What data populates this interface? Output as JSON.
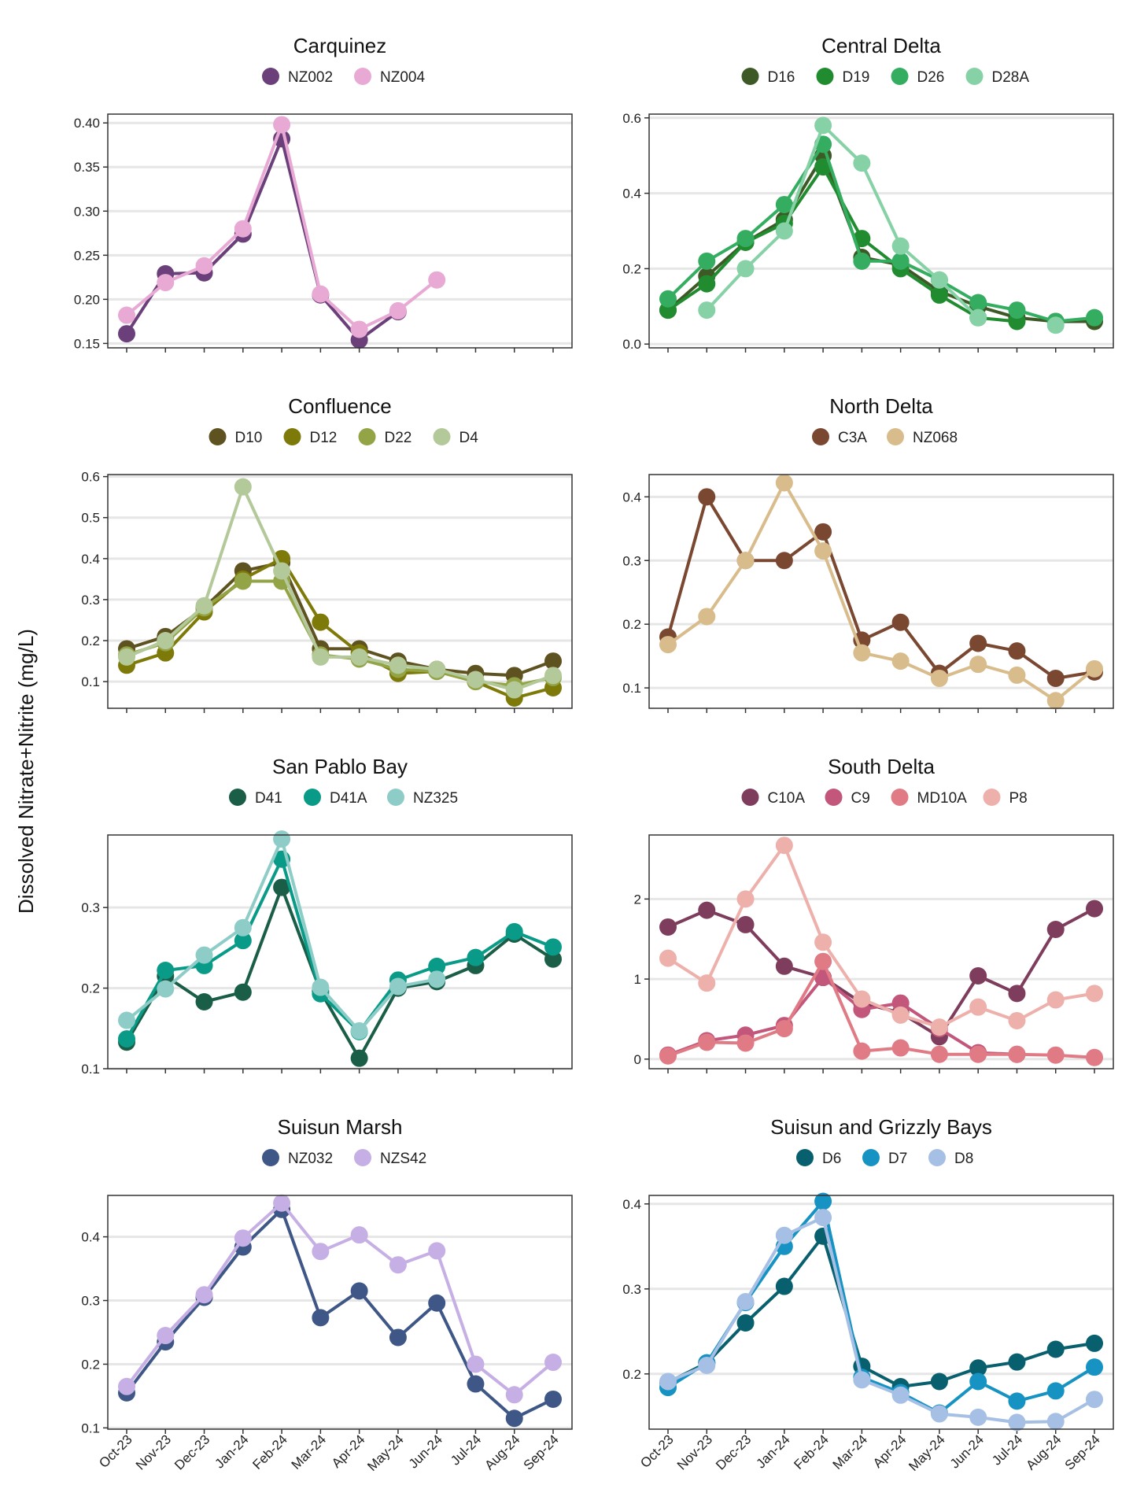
{
  "y_axis_label": "Dissolved Nitrate+Nitrite (mg/L)",
  "months": [
    "Oct-23",
    "Nov-23",
    "Dec-23",
    "Jan-24",
    "Feb-24",
    "Mar-24",
    "Apr-24",
    "May-24",
    "Jun-24",
    "Jul-24",
    "Aug-24",
    "Sep-24"
  ],
  "chart_data": [
    {
      "type": "line",
      "title": "Carquinez",
      "ylim": [
        0.145,
        0.41
      ],
      "yticks": [
        0.15,
        0.2,
        0.25,
        0.3,
        0.35,
        0.4
      ],
      "ytick_labels": [
        "0.15",
        "0.20",
        "0.25",
        "0.30",
        "0.35",
        "0.40"
      ],
      "grid": true,
      "legend": "top",
      "series": [
        {
          "name": "NZ002",
          "color": "#6b3f7a",
          "values": [
            0.161,
            0.229,
            0.23,
            0.274,
            0.382,
            0.205,
            0.154,
            0.186,
            null,
            null,
            null,
            null
          ]
        },
        {
          "name": "NZ004",
          "color": "#e8a9d4",
          "values": [
            0.182,
            0.219,
            0.238,
            0.28,
            0.398,
            0.206,
            0.166,
            0.187,
            0.222,
            null,
            null,
            null
          ]
        }
      ]
    },
    {
      "type": "line",
      "title": "Central Delta",
      "ylim": [
        -0.01,
        0.61
      ],
      "yticks": [
        0.0,
        0.2,
        0.4,
        0.6
      ],
      "ytick_labels": [
        "0.0",
        "0.2",
        "0.4",
        "0.6"
      ],
      "grid": true,
      "legend": "top",
      "series": [
        {
          "name": "D16",
          "color": "#3d5a26",
          "values": [
            0.09,
            0.18,
            0.27,
            0.33,
            0.5,
            0.23,
            0.21,
            0.14,
            0.1,
            0.07,
            0.06,
            0.06
          ]
        },
        {
          "name": "D19",
          "color": "#218c2f",
          "values": [
            0.09,
            0.16,
            0.27,
            0.32,
            0.47,
            0.28,
            0.2,
            0.13,
            0.07,
            0.06,
            null,
            null
          ]
        },
        {
          "name": "D26",
          "color": "#34ad61",
          "values": [
            0.12,
            0.22,
            0.28,
            0.37,
            0.53,
            0.22,
            0.22,
            0.17,
            0.11,
            0.09,
            0.06,
            0.07
          ]
        },
        {
          "name": "D28A",
          "color": "#87d1a6",
          "values": [
            null,
            0.09,
            0.2,
            0.3,
            0.58,
            0.48,
            0.26,
            0.17,
            0.07,
            null,
            0.05,
            null
          ]
        }
      ]
    },
    {
      "type": "line",
      "title": "Confluence",
      "ylim": [
        0.035,
        0.605
      ],
      "yticks": [
        0.1,
        0.2,
        0.3,
        0.4,
        0.5,
        0.6
      ],
      "ytick_labels": [
        "0.1",
        "0.2",
        "0.3",
        "0.4",
        "0.5",
        "0.6"
      ],
      "grid": true,
      "legend": "top",
      "series": [
        {
          "name": "D10",
          "color": "#5e5220",
          "values": [
            0.18,
            0.21,
            0.28,
            0.37,
            0.39,
            0.18,
            0.18,
            0.15,
            0.13,
            0.12,
            0.115,
            0.15
          ]
        },
        {
          "name": "D12",
          "color": "#7e7a0a",
          "values": [
            0.14,
            0.17,
            0.27,
            0.35,
            0.4,
            0.245,
            0.17,
            0.12,
            0.125,
            0.1,
            0.06,
            0.085
          ]
        },
        {
          "name": "D22",
          "color": "#93a446",
          "values": [
            0.165,
            0.195,
            0.28,
            0.345,
            0.345,
            0.165,
            0.155,
            0.13,
            0.125,
            0.1,
            0.09,
            0.11
          ]
        },
        {
          "name": "D4",
          "color": "#b4c99a",
          "values": [
            0.16,
            0.2,
            0.285,
            0.575,
            0.37,
            0.16,
            0.16,
            0.14,
            0.13,
            0.105,
            0.08,
            0.115
          ]
        }
      ]
    },
    {
      "type": "line",
      "title": "North Delta",
      "ylim": [
        0.068,
        0.435
      ],
      "yticks": [
        0.1,
        0.2,
        0.3,
        0.4
      ],
      "ytick_labels": [
        "0.1",
        "0.2",
        "0.3",
        "0.4"
      ],
      "grid": true,
      "legend": "top",
      "series": [
        {
          "name": "C3A",
          "color": "#7a4731",
          "values": [
            0.18,
            0.4,
            0.3,
            0.3,
            0.345,
            0.175,
            0.203,
            0.123,
            0.17,
            0.158,
            0.115,
            0.125
          ]
        },
        {
          "name": "NZ068",
          "color": "#d9bc8c",
          "values": [
            0.168,
            0.212,
            0.3,
            0.422,
            0.315,
            0.155,
            0.142,
            0.115,
            0.137,
            0.12,
            0.08,
            0.13
          ]
        }
      ]
    },
    {
      "type": "line",
      "title": "San Pablo Bay",
      "ylim": [
        0.1,
        0.39
      ],
      "yticks": [
        0.1,
        0.2,
        0.3
      ],
      "ytick_labels": [
        "0.1",
        "0.2",
        "0.3"
      ],
      "grid": true,
      "legend": "top",
      "series": [
        {
          "name": "D41",
          "color": "#1b5e48",
          "values": [
            0.133,
            0.215,
            0.183,
            0.195,
            0.325,
            0.196,
            0.113,
            0.2,
            0.208,
            0.228,
            0.267,
            0.236
          ]
        },
        {
          "name": "D41A",
          "color": "#0a9b88",
          "values": [
            0.137,
            0.222,
            0.228,
            0.259,
            0.36,
            0.193,
            0.146,
            0.21,
            0.227,
            0.238,
            0.27,
            0.251
          ]
        },
        {
          "name": "NZ325",
          "color": "#8ecdc7",
          "values": [
            0.16,
            0.199,
            0.241,
            0.275,
            0.385,
            0.201,
            0.147,
            0.202,
            0.211,
            null,
            null,
            null
          ]
        }
      ]
    },
    {
      "type": "line",
      "title": "South Delta",
      "ylim": [
        -0.12,
        2.8
      ],
      "yticks": [
        0,
        1,
        2
      ],
      "ytick_labels": [
        "0",
        "1",
        "2"
      ],
      "grid": true,
      "legend": "top",
      "series": [
        {
          "name": "C10A",
          "color": "#7e3d5d",
          "values": [
            1.65,
            1.86,
            1.68,
            1.16,
            1.02,
            0.7,
            0.58,
            0.28,
            1.04,
            0.82,
            1.62,
            1.88
          ]
        },
        {
          "name": "C9",
          "color": "#c2577b",
          "values": [
            0.05,
            0.23,
            0.3,
            0.42,
            1.02,
            0.62,
            0.7,
            0.38,
            0.08,
            0.06,
            null,
            null
          ]
        },
        {
          "name": "MD10A",
          "color": "#e07b86",
          "values": [
            0.04,
            0.21,
            0.2,
            0.38,
            1.22,
            0.1,
            0.14,
            0.06,
            0.06,
            0.06,
            0.05,
            0.02
          ]
        },
        {
          "name": "P8",
          "color": "#eeb0ab",
          "values": [
            1.26,
            0.95,
            2.0,
            2.67,
            1.46,
            0.75,
            0.55,
            0.4,
            0.65,
            0.48,
            0.74,
            0.82
          ]
        }
      ]
    },
    {
      "type": "line",
      "title": "Suisun Marsh",
      "ylim": [
        0.098,
        0.465
      ],
      "yticks": [
        0.1,
        0.2,
        0.3,
        0.4
      ],
      "ytick_labels": [
        "0.1",
        "0.2",
        "0.3",
        "0.4"
      ],
      "grid": true,
      "legend": "top",
      "series": [
        {
          "name": "NZ032",
          "color": "#3f5787",
          "values": [
            0.155,
            0.235,
            0.305,
            0.384,
            0.443,
            0.273,
            0.315,
            0.242,
            0.296,
            0.169,
            0.115,
            0.145
          ]
        },
        {
          "name": "NZS42",
          "color": "#c6afe4",
          "values": [
            0.165,
            0.245,
            0.309,
            0.398,
            0.453,
            0.377,
            0.403,
            0.356,
            0.378,
            0.2,
            0.152,
            0.203
          ]
        }
      ]
    },
    {
      "type": "line",
      "title": "Suisun and Grizzly Bays",
      "ylim": [
        0.135,
        0.41
      ],
      "yticks": [
        0.2,
        0.3,
        0.4
      ],
      "ytick_labels": [
        "0.2",
        "0.3",
        "0.4"
      ],
      "grid": true,
      "legend": "top",
      "series": [
        {
          "name": "D6",
          "color": "#08606e",
          "values": [
            0.19,
            0.213,
            0.26,
            0.303,
            0.362,
            0.209,
            0.185,
            0.191,
            0.207,
            0.214,
            0.229,
            0.236
          ]
        },
        {
          "name": "D7",
          "color": "#1693c2",
          "values": [
            0.184,
            0.213,
            0.284,
            0.35,
            0.403,
            0.196,
            0.178,
            0.154,
            0.191,
            0.168,
            0.18,
            0.208
          ]
        },
        {
          "name": "D8",
          "color": "#a6bfe5",
          "values": [
            0.191,
            0.21,
            0.285,
            0.363,
            0.384,
            0.193,
            0.175,
            0.153,
            0.149,
            0.143,
            0.144,
            0.17
          ]
        }
      ]
    }
  ]
}
